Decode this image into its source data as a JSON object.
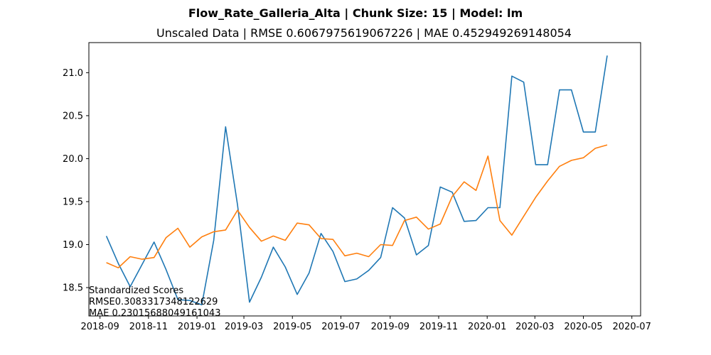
{
  "chart_data": {
    "type": "line",
    "title": "Flow_Rate_Galleria_Alta | Chunk Size: 15 | Model: lm",
    "subtitle": "Unscaled Data | RMSE 0.6067975619067226 | MAE 0.452949269148054",
    "xlabel": "",
    "ylabel": "",
    "x_axis_type": "date",
    "xlim": [
      "2018-08-18",
      "2020-07-12"
    ],
    "ylim": [
      18.17,
      21.35
    ],
    "grid": false,
    "x_ticks": [
      {
        "date": "2018-09-01",
        "label": "2018-09"
      },
      {
        "date": "2018-11-01",
        "label": "2018-11"
      },
      {
        "date": "2019-01-01",
        "label": "2019-01"
      },
      {
        "date": "2019-03-01",
        "label": "2019-03"
      },
      {
        "date": "2019-05-01",
        "label": "2019-05"
      },
      {
        "date": "2019-07-01",
        "label": "2019-07"
      },
      {
        "date": "2019-09-01",
        "label": "2019-09"
      },
      {
        "date": "2019-11-01",
        "label": "2019-11"
      },
      {
        "date": "2020-01-01",
        "label": "2020-01"
      },
      {
        "date": "2020-03-01",
        "label": "2020-03"
      },
      {
        "date": "2020-05-01",
        "label": "2020-05"
      },
      {
        "date": "2020-07-01",
        "label": "2020-07"
      }
    ],
    "y_ticks": [
      {
        "value": 18.5,
        "label": "18.5"
      },
      {
        "value": 19.0,
        "label": "19.0"
      },
      {
        "value": 19.5,
        "label": "19.5"
      },
      {
        "value": 20.0,
        "label": "20.0"
      },
      {
        "value": 20.5,
        "label": "20.5"
      },
      {
        "value": 21.0,
        "label": "21.0"
      }
    ],
    "x": [
      "2018-09-09",
      "2018-09-24",
      "2018-10-09",
      "2018-10-24",
      "2018-11-08",
      "2018-11-23",
      "2018-12-08",
      "2018-12-23",
      "2019-01-07",
      "2019-01-22",
      "2019-02-06",
      "2019-02-21",
      "2019-03-08",
      "2019-03-23",
      "2019-04-07",
      "2019-04-22",
      "2019-05-07",
      "2019-05-22",
      "2019-06-06",
      "2019-06-21",
      "2019-07-06",
      "2019-07-21",
      "2019-08-05",
      "2019-08-20",
      "2019-09-04",
      "2019-09-19",
      "2019-10-04",
      "2019-10-19",
      "2019-11-03",
      "2019-11-18",
      "2019-12-03",
      "2019-12-18",
      "2020-01-02",
      "2020-01-17",
      "2020-02-01",
      "2020-02-16",
      "2020-03-02",
      "2020-03-17",
      "2020-04-01",
      "2020-04-16",
      "2020-05-01",
      "2020-05-16",
      "2020-05-31"
    ],
    "series": [
      {
        "color": "#1f77b4",
        "values": [
          19.1,
          18.78,
          18.51,
          18.77,
          19.03,
          18.71,
          18.36,
          18.35,
          18.3,
          19.05,
          20.37,
          19.46,
          18.33,
          18.62,
          18.97,
          18.74,
          18.42,
          18.67,
          19.13,
          18.92,
          18.57,
          18.6,
          18.7,
          18.85,
          19.43,
          19.31,
          18.88,
          18.99,
          19.67,
          19.61,
          19.27,
          19.28,
          19.43,
          19.43,
          20.96,
          20.89,
          19.93,
          19.93,
          20.8,
          20.8,
          20.31,
          20.31,
          21.2
        ]
      },
      {
        "color": "#ff7f0e",
        "values": [
          18.79,
          18.73,
          18.86,
          18.83,
          18.85,
          19.08,
          19.19,
          18.97,
          19.09,
          19.15,
          19.17,
          19.4,
          19.2,
          19.04,
          19.1,
          19.05,
          19.25,
          19.23,
          19.07,
          19.06,
          18.87,
          18.9,
          18.86,
          19.0,
          18.99,
          19.28,
          19.32,
          19.18,
          19.24,
          19.56,
          19.73,
          19.63,
          20.03,
          19.28,
          19.11,
          19.33,
          19.55,
          19.74,
          19.91,
          19.98,
          20.01,
          20.12,
          20.16
        ]
      }
    ],
    "annotation": [
      "Standardized Scores",
      "RMSE0.3083317348122629",
      "MAE 0.23015688049161043"
    ]
  }
}
